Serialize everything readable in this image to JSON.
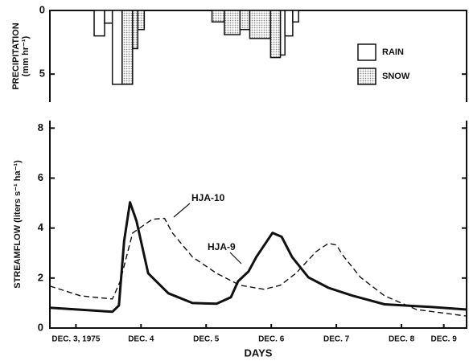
{
  "chart_data": [
    {
      "type": "histogram",
      "ylabel": [
        "PRECIPITATION",
        "(mm hr⁻¹)"
      ],
      "bins": [
        3.78,
        3.94,
        4.06,
        4.21,
        4.37,
        4.45,
        4.55,
        5.59,
        5.78,
        6.02,
        6.17,
        6.49,
        6.64,
        6.71,
        6.83,
        6.92
      ],
      "series": [
        {
          "name": "RAIN",
          "color": "#ffffff",
          "values": [
            2.0,
            1.0,
            5.8,
            null,
            null,
            null,
            null,
            null,
            null,
            null,
            null,
            null,
            3.5,
            2.0,
            0.9
          ]
        },
        {
          "name": "SNOW",
          "color": "#8a8a8a",
          "values": [
            null,
            null,
            null,
            5.8,
            3.0,
            1.5,
            null,
            0.9,
            1.9,
            1.5,
            2.2,
            3.7,
            null,
            null,
            null
          ]
        }
      ],
      "xlim": [
        3.1,
        9.5
      ],
      "ylim": [
        0,
        7.2
      ],
      "yticks": [
        0,
        5
      ],
      "y_inverted": true,
      "legend": "right"
    },
    {
      "type": "line",
      "ylabel": "STREAMFLOW (liters s⁻¹ ha⁻¹)",
      "xlabel": "DAYS",
      "series": [
        {
          "name": "HJA-9",
          "color": "#111111",
          "style": "solid",
          "x": [
            3.1,
            4.06,
            4.16,
            4.24,
            4.33,
            4.43,
            4.61,
            4.92,
            5.29,
            5.66,
            5.88,
            5.99,
            6.15,
            6.27,
            6.52,
            6.66,
            6.82,
            7.07,
            7.38,
            7.74,
            8.24,
            8.97,
            9.5
          ],
          "values": [
            0.81,
            0.65,
            0.9,
            3.48,
            5.03,
            4.29,
            2.19,
            1.39,
            1.0,
            0.97,
            1.23,
            1.87,
            2.26,
            2.84,
            3.81,
            3.65,
            2.84,
            2.03,
            1.61,
            1.3,
            0.95,
            0.84,
            0.74
          ]
        },
        {
          "name": "HJA-10",
          "color": "#111111",
          "style": "dashed",
          "x": [
            3.1,
            3.57,
            4.06,
            4.18,
            4.37,
            4.67,
            4.86,
            4.98,
            5.29,
            5.66,
            6.02,
            6.39,
            6.64,
            6.88,
            7.19,
            7.38,
            7.5,
            7.62,
            7.87,
            8.24,
            8.73,
            9.5
          ],
          "values": [
            1.68,
            1.29,
            1.16,
            1.87,
            3.8,
            4.35,
            4.39,
            3.81,
            2.84,
            2.19,
            1.71,
            1.55,
            1.71,
            2.19,
            3.06,
            3.39,
            3.32,
            2.84,
            2.03,
            1.29,
            0.74,
            0.48
          ]
        }
      ],
      "xlim": [
        3.1,
        9.5
      ],
      "ylim": [
        0,
        8.3
      ],
      "yticks": [
        0,
        2,
        4,
        6,
        8
      ],
      "xticks": [
        {
          "value": 3.5,
          "label": "DEC. 3, 1975"
        },
        {
          "value": 4.5,
          "label": "DEC. 4"
        },
        {
          "value": 5.5,
          "label": "DEC. 5"
        },
        {
          "value": 6.5,
          "label": "DEC. 6"
        },
        {
          "value": 7.5,
          "label": "DEC. 7"
        },
        {
          "value": 8.5,
          "label": "DEC. 8"
        },
        {
          "value": 9.15,
          "label": "DEC. 9"
        }
      ]
    }
  ]
}
